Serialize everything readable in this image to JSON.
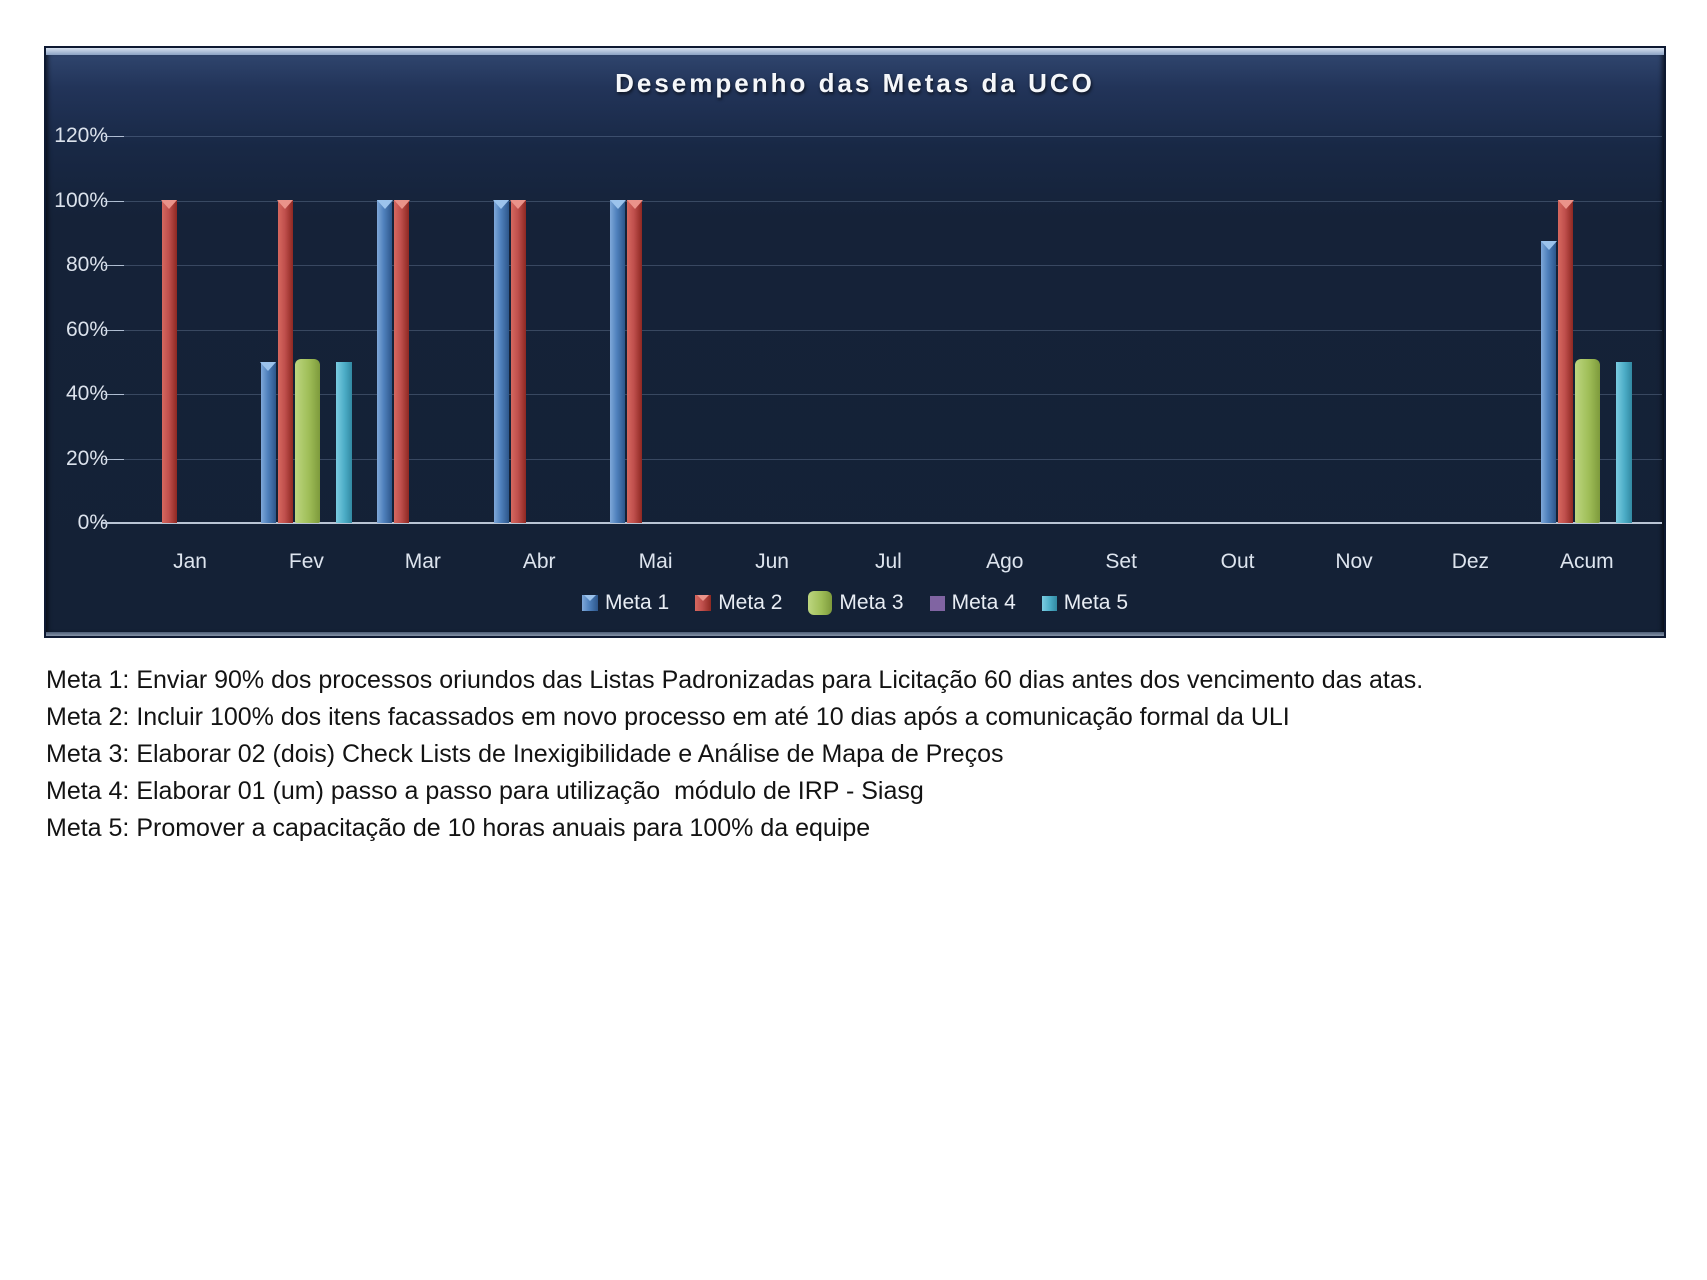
{
  "chart_data": {
    "type": "bar",
    "title": "Desempenho das Metas da UCO",
    "categories": [
      "Jan",
      "Fev",
      "Mar",
      "Abr",
      "Mai",
      "Jun",
      "Jul",
      "Ago",
      "Set",
      "Out",
      "Nov",
      "Dez",
      "Acum"
    ],
    "series": [
      {
        "name": "Meta 1",
        "color": "#4F81BD",
        "values": [
          0,
          50,
          100,
          100,
          100,
          0,
          0,
          0,
          0,
          0,
          0,
          0,
          87.5
        ]
      },
      {
        "name": "Meta 2",
        "color": "#C0504D",
        "values": [
          100,
          100,
          100,
          100,
          100,
          0,
          0,
          0,
          0,
          0,
          0,
          0,
          100
        ]
      },
      {
        "name": "Meta 3",
        "color": "#9BBB59",
        "values": [
          0,
          51,
          0,
          0,
          0,
          0,
          0,
          0,
          0,
          0,
          0,
          0,
          51
        ]
      },
      {
        "name": "Meta 4",
        "color": "#8064A2",
        "values": [
          0,
          0,
          0,
          0,
          0,
          0,
          0,
          0,
          0,
          0,
          0,
          0,
          0
        ]
      },
      {
        "name": "Meta 5",
        "color": "#4BACC6",
        "values": [
          0,
          50,
          0,
          0,
          0,
          0,
          0,
          0,
          0,
          0,
          0,
          0,
          50
        ]
      }
    ],
    "xlabel": "",
    "ylabel": "",
    "ylim": [
      0,
      120
    ],
    "yticks": [
      "0%",
      "20%",
      "40%",
      "60%",
      "80%",
      "100%",
      "120%"
    ],
    "grid": true,
    "legend_position": "bottom",
    "background_color": "#152238",
    "axis_text_color": "#DBE2EC"
  },
  "notes": {
    "lines": [
      "Meta 1: Enviar 90% dos processos oriundos das Listas Padronizadas para Licitação 60 dias antes dos vencimento das atas.",
      "Meta 2: Incluir 100% dos itens facassados em novo processo em até 10 dias após a comunicação formal da ULI",
      "Meta 3: Elaborar 02 (dois) Check Lists de Inexigibilidade e Análise de Mapa de Preços",
      "Meta 4: Elaborar 01 (um) passo a passo para utilização  módulo de IRP - Siasg",
      "Meta 5: Promover a capacitação de 10 horas anuais para 100% da equipe"
    ]
  }
}
